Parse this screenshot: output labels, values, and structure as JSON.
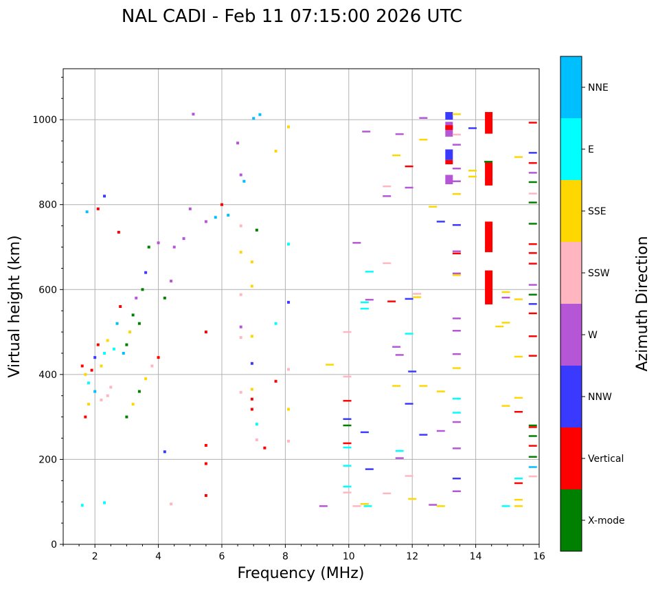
{
  "chart_data": {
    "type": "scatter",
    "title": "NAL CADI - Feb 11 07:15:00 2026 UTC",
    "xlabel": "Frequency (MHz)",
    "ylabel": "Virtual height (km)",
    "xlim": [
      1,
      16
    ],
    "ylim": [
      0,
      1120
    ],
    "xticks": [
      2,
      4,
      6,
      8,
      10,
      12,
      14,
      16
    ],
    "yticks": [
      0,
      200,
      400,
      600,
      800,
      1000
    ],
    "grid": true,
    "colorbar": {
      "label": "Azimuth Direction",
      "categories": [
        {
          "name": "X-mode",
          "color": "#008000"
        },
        {
          "name": "Vertical",
          "color": "#ff0000"
        },
        {
          "name": "NNW",
          "color": "#3a3aff"
        },
        {
          "name": "W",
          "color": "#b556d6"
        },
        {
          "name": "SSW",
          "color": "#ffb6c1"
        },
        {
          "name": "SSE",
          "color": "#ffd700"
        },
        {
          "name": "E",
          "color": "#00ffff"
        },
        {
          "name": "NNE",
          "color": "#00bfff"
        }
      ]
    },
    "points": [
      {
        "x": 1.6,
        "y": 92,
        "c": "E"
      },
      {
        "x": 2.3,
        "y": 98,
        "c": "E"
      },
      {
        "x": 4.4,
        "y": 95,
        "c": "SSW"
      },
      {
        "x": 1.6,
        "y": 420,
        "c": "Vertical"
      },
      {
        "x": 1.7,
        "y": 400,
        "c": "SSE"
      },
      {
        "x": 1.8,
        "y": 380,
        "c": "E"
      },
      {
        "x": 1.9,
        "y": 410,
        "c": "Vertical"
      },
      {
        "x": 2.0,
        "y": 440,
        "c": "NNW"
      },
      {
        "x": 2.1,
        "y": 470,
        "c": "Vertical"
      },
      {
        "x": 1.7,
        "y": 300,
        "c": "Vertical"
      },
      {
        "x": 1.8,
        "y": 330,
        "c": "SSE"
      },
      {
        "x": 2.0,
        "y": 360,
        "c": "NNE"
      },
      {
        "x": 2.2,
        "y": 420,
        "c": "SSE"
      },
      {
        "x": 2.3,
        "y": 450,
        "c": "E"
      },
      {
        "x": 2.4,
        "y": 480,
        "c": "SSE"
      },
      {
        "x": 2.2,
        "y": 340,
        "c": "SSW"
      },
      {
        "x": 2.4,
        "y": 350,
        "c": "SSW"
      },
      {
        "x": 2.5,
        "y": 370,
        "c": "SSW"
      },
      {
        "x": 2.6,
        "y": 460,
        "c": "E"
      },
      {
        "x": 2.7,
        "y": 520,
        "c": "NNE"
      },
      {
        "x": 2.8,
        "y": 560,
        "c": "Vertical"
      },
      {
        "x": 2.9,
        "y": 450,
        "c": "NNE"
      },
      {
        "x": 3.0,
        "y": 470,
        "c": "X-mode"
      },
      {
        "x": 3.1,
        "y": 500,
        "c": "SSE"
      },
      {
        "x": 3.2,
        "y": 540,
        "c": "X-mode"
      },
      {
        "x": 3.3,
        "y": 580,
        "c": "W"
      },
      {
        "x": 3.4,
        "y": 520,
        "c": "X-mode"
      },
      {
        "x": 3.5,
        "y": 600,
        "c": "X-mode"
      },
      {
        "x": 3.6,
        "y": 640,
        "c": "NNW"
      },
      {
        "x": 3.7,
        "y": 700,
        "c": "X-mode"
      },
      {
        "x": 3.0,
        "y": 300,
        "c": "X-mode"
      },
      {
        "x": 3.2,
        "y": 330,
        "c": "SSE"
      },
      {
        "x": 3.4,
        "y": 360,
        "c": "X-mode"
      },
      {
        "x": 3.6,
        "y": 390,
        "c": "SSE"
      },
      {
        "x": 3.8,
        "y": 420,
        "c": "SSW"
      },
      {
        "x": 4.0,
        "y": 440,
        "c": "Vertical"
      },
      {
        "x": 4.0,
        "y": 710,
        "c": "W"
      },
      {
        "x": 4.2,
        "y": 580,
        "c": "X-mode"
      },
      {
        "x": 4.4,
        "y": 620,
        "c": "W"
      },
      {
        "x": 4.5,
        "y": 700,
        "c": "W"
      },
      {
        "x": 4.8,
        "y": 720,
        "c": "W"
      },
      {
        "x": 5.0,
        "y": 790,
        "c": "W"
      },
      {
        "x": 2.3,
        "y": 820,
        "c": "NNW"
      },
      {
        "x": 2.1,
        "y": 790,
        "c": "Vertical"
      },
      {
        "x": 1.75,
        "y": 783,
        "c": "NNE"
      },
      {
        "x": 2.75,
        "y": 735,
        "c": "Vertical"
      },
      {
        "x": 4.2,
        "y": 218,
        "c": "NNW"
      },
      {
        "x": 5.5,
        "y": 500,
        "c": "Vertical"
      },
      {
        "x": 5.5,
        "y": 190,
        "c": "Vertical"
      },
      {
        "x": 5.5,
        "y": 115,
        "c": "Vertical"
      },
      {
        "x": 5.5,
        "y": 233,
        "c": "Vertical"
      },
      {
        "x": 5.5,
        "y": 760,
        "c": "W"
      },
      {
        "x": 5.8,
        "y": 770,
        "c": "NNE"
      },
      {
        "x": 6.0,
        "y": 800,
        "c": "Vertical"
      },
      {
        "x": 6.2,
        "y": 775,
        "c": "NNE"
      },
      {
        "x": 6.5,
        "y": 945,
        "c": "W"
      },
      {
        "x": 6.7,
        "y": 855,
        "c": "NNE"
      },
      {
        "x": 5.1,
        "y": 1013,
        "c": "W"
      },
      {
        "x": 7.0,
        "y": 1003,
        "c": "NNE"
      },
      {
        "x": 7.2,
        "y": 1012,
        "c": "NNE"
      },
      {
        "x": 7.7,
        "y": 926,
        "c": "SSE"
      },
      {
        "x": 8.1,
        "y": 983,
        "c": "SSE"
      },
      {
        "x": 6.6,
        "y": 870,
        "c": "W"
      },
      {
        "x": 6.6,
        "y": 750,
        "c": "SSW"
      },
      {
        "x": 6.6,
        "y": 688,
        "c": "SSE"
      },
      {
        "x": 6.6,
        "y": 588,
        "c": "SSW"
      },
      {
        "x": 6.6,
        "y": 512,
        "c": "W"
      },
      {
        "x": 6.6,
        "y": 487,
        "c": "SSW"
      },
      {
        "x": 6.6,
        "y": 358,
        "c": "SSW"
      },
      {
        "x": 6.95,
        "y": 426,
        "c": "NNW"
      },
      {
        "x": 6.95,
        "y": 365,
        "c": "SSE"
      },
      {
        "x": 6.95,
        "y": 342,
        "c": "Vertical"
      },
      {
        "x": 6.95,
        "y": 318,
        "c": "Vertical"
      },
      {
        "x": 6.95,
        "y": 665,
        "c": "SSE"
      },
      {
        "x": 6.95,
        "y": 608,
        "c": "SSE"
      },
      {
        "x": 6.95,
        "y": 490,
        "c": "SSE"
      },
      {
        "x": 7.1,
        "y": 740,
        "c": "X-mode"
      },
      {
        "x": 7.1,
        "y": 283,
        "c": "E"
      },
      {
        "x": 7.1,
        "y": 246,
        "c": "SSW"
      },
      {
        "x": 7.35,
        "y": 227,
        "c": "Vertical"
      },
      {
        "x": 7.7,
        "y": 384,
        "c": "Vertical"
      },
      {
        "x": 7.7,
        "y": 520,
        "c": "E"
      },
      {
        "x": 8.1,
        "y": 707,
        "c": "E"
      },
      {
        "x": 8.1,
        "y": 570,
        "c": "NNW"
      },
      {
        "x": 8.1,
        "y": 412,
        "c": "SSW"
      },
      {
        "x": 8.1,
        "y": 318,
        "c": "SSE"
      },
      {
        "x": 8.1,
        "y": 243,
        "c": "SSW"
      },
      {
        "x": 9.2,
        "y": 90,
        "c": "W"
      },
      {
        "x": 9.4,
        "y": 423,
        "c": "SSE"
      },
      {
        "x": 9.95,
        "y": 500,
        "c": "SSW"
      },
      {
        "x": 9.95,
        "y": 395,
        "c": "SSW"
      },
      {
        "x": 9.95,
        "y": 338,
        "c": "Vertical"
      },
      {
        "x": 9.95,
        "y": 295,
        "c": "NNW"
      },
      {
        "x": 9.95,
        "y": 280,
        "c": "X-mode"
      },
      {
        "x": 9.95,
        "y": 238,
        "c": "Vertical"
      },
      {
        "x": 9.95,
        "y": 228,
        "c": "E"
      },
      {
        "x": 9.95,
        "y": 185,
        "c": "E"
      },
      {
        "x": 9.95,
        "y": 136,
        "c": "E"
      },
      {
        "x": 9.95,
        "y": 122,
        "c": "SSW"
      },
      {
        "x": 10.25,
        "y": 710,
        "c": "W"
      },
      {
        "x": 10.25,
        "y": 90,
        "c": "SSW"
      },
      {
        "x": 10.5,
        "y": 570,
        "c": "E"
      },
      {
        "x": 10.5,
        "y": 555,
        "c": "E"
      },
      {
        "x": 10.5,
        "y": 264,
        "c": "NNW"
      },
      {
        "x": 10.5,
        "y": 95,
        "c": "SSE"
      },
      {
        "x": 10.6,
        "y": 90,
        "c": "E"
      },
      {
        "x": 10.65,
        "y": 642,
        "c": "E"
      },
      {
        "x": 10.65,
        "y": 576,
        "c": "W"
      },
      {
        "x": 10.65,
        "y": 177,
        "c": "NNW"
      },
      {
        "x": 10.55,
        "y": 972,
        "c": "W"
      },
      {
        "x": 11.2,
        "y": 843,
        "c": "SSW"
      },
      {
        "x": 11.2,
        "y": 820,
        "c": "W"
      },
      {
        "x": 11.2,
        "y": 662,
        "c": "SSW"
      },
      {
        "x": 11.2,
        "y": 120,
        "c": "SSW"
      },
      {
        "x": 11.35,
        "y": 572,
        "c": "Vertical"
      },
      {
        "x": 11.5,
        "y": 465,
        "c": "W"
      },
      {
        "x": 11.5,
        "y": 373,
        "c": "SSE"
      },
      {
        "x": 11.6,
        "y": 446,
        "c": "W"
      },
      {
        "x": 11.6,
        "y": 966,
        "c": "W"
      },
      {
        "x": 11.6,
        "y": 220,
        "c": "E"
      },
      {
        "x": 11.6,
        "y": 203,
        "c": "W"
      },
      {
        "x": 11.5,
        "y": 916,
        "c": "SSE"
      },
      {
        "x": 11.9,
        "y": 890,
        "c": "Vertical"
      },
      {
        "x": 11.9,
        "y": 840,
        "c": "W"
      },
      {
        "x": 11.9,
        "y": 578,
        "c": "NNW"
      },
      {
        "x": 11.9,
        "y": 496,
        "c": "E"
      },
      {
        "x": 11.9,
        "y": 331,
        "c": "NNW"
      },
      {
        "x": 11.9,
        "y": 161,
        "c": "SSW"
      },
      {
        "x": 12.0,
        "y": 407,
        "c": "NNW"
      },
      {
        "x": 12.0,
        "y": 107,
        "c": "SSE"
      },
      {
        "x": 12.15,
        "y": 590,
        "c": "SSW"
      },
      {
        "x": 12.15,
        "y": 582,
        "c": "SSE"
      },
      {
        "x": 12.35,
        "y": 1004,
        "c": "W"
      },
      {
        "x": 12.35,
        "y": 953,
        "c": "SSE"
      },
      {
        "x": 12.35,
        "y": 373,
        "c": "SSE"
      },
      {
        "x": 12.35,
        "y": 258,
        "c": "NNW"
      },
      {
        "x": 12.65,
        "y": 795,
        "c": "SSE"
      },
      {
        "x": 12.65,
        "y": 93,
        "c": "W"
      },
      {
        "x": 12.9,
        "y": 760,
        "c": "NNW"
      },
      {
        "x": 12.9,
        "y": 360,
        "c": "SSE"
      },
      {
        "x": 12.9,
        "y": 267,
        "c": "W"
      },
      {
        "x": 12.9,
        "y": 90,
        "c": "SSE"
      },
      {
        "x": 13.4,
        "y": 1013,
        "c": "SSE"
      },
      {
        "x": 13.4,
        "y": 965,
        "c": "SSW"
      },
      {
        "x": 13.4,
        "y": 941,
        "c": "W"
      },
      {
        "x": 13.4,
        "y": 885,
        "c": "W"
      },
      {
        "x": 13.4,
        "y": 855,
        "c": "W"
      },
      {
        "x": 13.4,
        "y": 825,
        "c": "SSE"
      },
      {
        "x": 13.4,
        "y": 752,
        "c": "NNW"
      },
      {
        "x": 13.4,
        "y": 690,
        "c": "W"
      },
      {
        "x": 13.4,
        "y": 685,
        "c": "Vertical"
      },
      {
        "x": 13.4,
        "y": 638,
        "c": "W"
      },
      {
        "x": 13.4,
        "y": 634,
        "c": "SSE"
      },
      {
        "x": 13.4,
        "y": 532,
        "c": "W"
      },
      {
        "x": 13.4,
        "y": 503,
        "c": "W"
      },
      {
        "x": 13.4,
        "y": 448,
        "c": "W"
      },
      {
        "x": 13.4,
        "y": 415,
        "c": "SSE"
      },
      {
        "x": 13.4,
        "y": 343,
        "c": "E"
      },
      {
        "x": 13.4,
        "y": 310,
        "c": "E"
      },
      {
        "x": 13.4,
        "y": 288,
        "c": "W"
      },
      {
        "x": 13.4,
        "y": 226,
        "c": "W"
      },
      {
        "x": 13.4,
        "y": 155,
        "c": "NNW"
      },
      {
        "x": 13.4,
        "y": 125,
        "c": "W"
      },
      {
        "x": 13.9,
        "y": 980,
        "c": "NNW"
      },
      {
        "x": 13.9,
        "y": 880,
        "c": "SSE"
      },
      {
        "x": 13.9,
        "y": 866,
        "c": "SSE"
      },
      {
        "x": 14.4,
        "y": 901,
        "c": "X-mode"
      },
      {
        "x": 14.95,
        "y": 594,
        "c": "SSE"
      },
      {
        "x": 14.95,
        "y": 581,
        "c": "W"
      },
      {
        "x": 14.95,
        "y": 522,
        "c": "SSE"
      },
      {
        "x": 14.95,
        "y": 326,
        "c": "SSE"
      },
      {
        "x": 14.95,
        "y": 90,
        "c": "E"
      },
      {
        "x": 14.75,
        "y": 513,
        "c": "SSE"
      },
      {
        "x": 15.35,
        "y": 912,
        "c": "SSE"
      },
      {
        "x": 15.35,
        "y": 577,
        "c": "SSE"
      },
      {
        "x": 15.35,
        "y": 442,
        "c": "SSE"
      },
      {
        "x": 15.35,
        "y": 345,
        "c": "SSE"
      },
      {
        "x": 15.35,
        "y": 312,
        "c": "Vertical"
      },
      {
        "x": 15.35,
        "y": 155,
        "c": "E"
      },
      {
        "x": 15.35,
        "y": 144,
        "c": "Vertical"
      },
      {
        "x": 15.35,
        "y": 105,
        "c": "SSE"
      },
      {
        "x": 15.35,
        "y": 90,
        "c": "SSE"
      },
      {
        "x": 15.8,
        "y": 993,
        "c": "Vertical"
      },
      {
        "x": 15.8,
        "y": 922,
        "c": "NNW"
      },
      {
        "x": 15.8,
        "y": 898,
        "c": "Vertical"
      },
      {
        "x": 15.8,
        "y": 875,
        "c": "W"
      },
      {
        "x": 15.8,
        "y": 853,
        "c": "X-mode"
      },
      {
        "x": 15.8,
        "y": 826,
        "c": "SSW"
      },
      {
        "x": 15.8,
        "y": 805,
        "c": "X-mode"
      },
      {
        "x": 15.8,
        "y": 755,
        "c": "X-mode"
      },
      {
        "x": 15.8,
        "y": 707,
        "c": "Vertical"
      },
      {
        "x": 15.8,
        "y": 686,
        "c": "Vertical"
      },
      {
        "x": 15.8,
        "y": 661,
        "c": "Vertical"
      },
      {
        "x": 15.8,
        "y": 611,
        "c": "W"
      },
      {
        "x": 15.8,
        "y": 588,
        "c": "X-mode"
      },
      {
        "x": 15.8,
        "y": 566,
        "c": "NNW"
      },
      {
        "x": 15.8,
        "y": 544,
        "c": "Vertical"
      },
      {
        "x": 15.8,
        "y": 490,
        "c": "Vertical"
      },
      {
        "x": 15.8,
        "y": 444,
        "c": "Vertical"
      },
      {
        "x": 15.8,
        "y": 280,
        "c": "X-mode"
      },
      {
        "x": 15.8,
        "y": 276,
        "c": "Vertical"
      },
      {
        "x": 15.8,
        "y": 255,
        "c": "X-mode"
      },
      {
        "x": 15.8,
        "y": 232,
        "c": "Vertical"
      },
      {
        "x": 15.8,
        "y": 206,
        "c": "X-mode"
      },
      {
        "x": 15.8,
        "y": 182,
        "c": "NNE"
      },
      {
        "x": 15.8,
        "y": 160,
        "c": "SSW"
      }
    ],
    "column_bars": [
      {
        "x": 13.15,
        "y0": 1000,
        "y1": 1018,
        "c": "NNW"
      },
      {
        "x": 13.15,
        "y0": 960,
        "y1": 995,
        "c": "W"
      },
      {
        "x": 13.15,
        "y0": 905,
        "y1": 930,
        "c": "NNW"
      },
      {
        "x": 13.15,
        "y0": 895,
        "y1": 905,
        "c": "Vertical"
      },
      {
        "x": 13.15,
        "y0": 848,
        "y1": 870,
        "c": "W"
      },
      {
        "x": 13.15,
        "y0": 976,
        "y1": 987,
        "c": "Vertical"
      },
      {
        "x": 14.4,
        "y0": 967,
        "y1": 1018,
        "c": "Vertical"
      },
      {
        "x": 14.4,
        "y0": 845,
        "y1": 900,
        "c": "Vertical"
      },
      {
        "x": 14.4,
        "y0": 688,
        "y1": 760,
        "c": "Vertical"
      },
      {
        "x": 14.4,
        "y0": 565,
        "y1": 645,
        "c": "Vertical"
      }
    ]
  }
}
